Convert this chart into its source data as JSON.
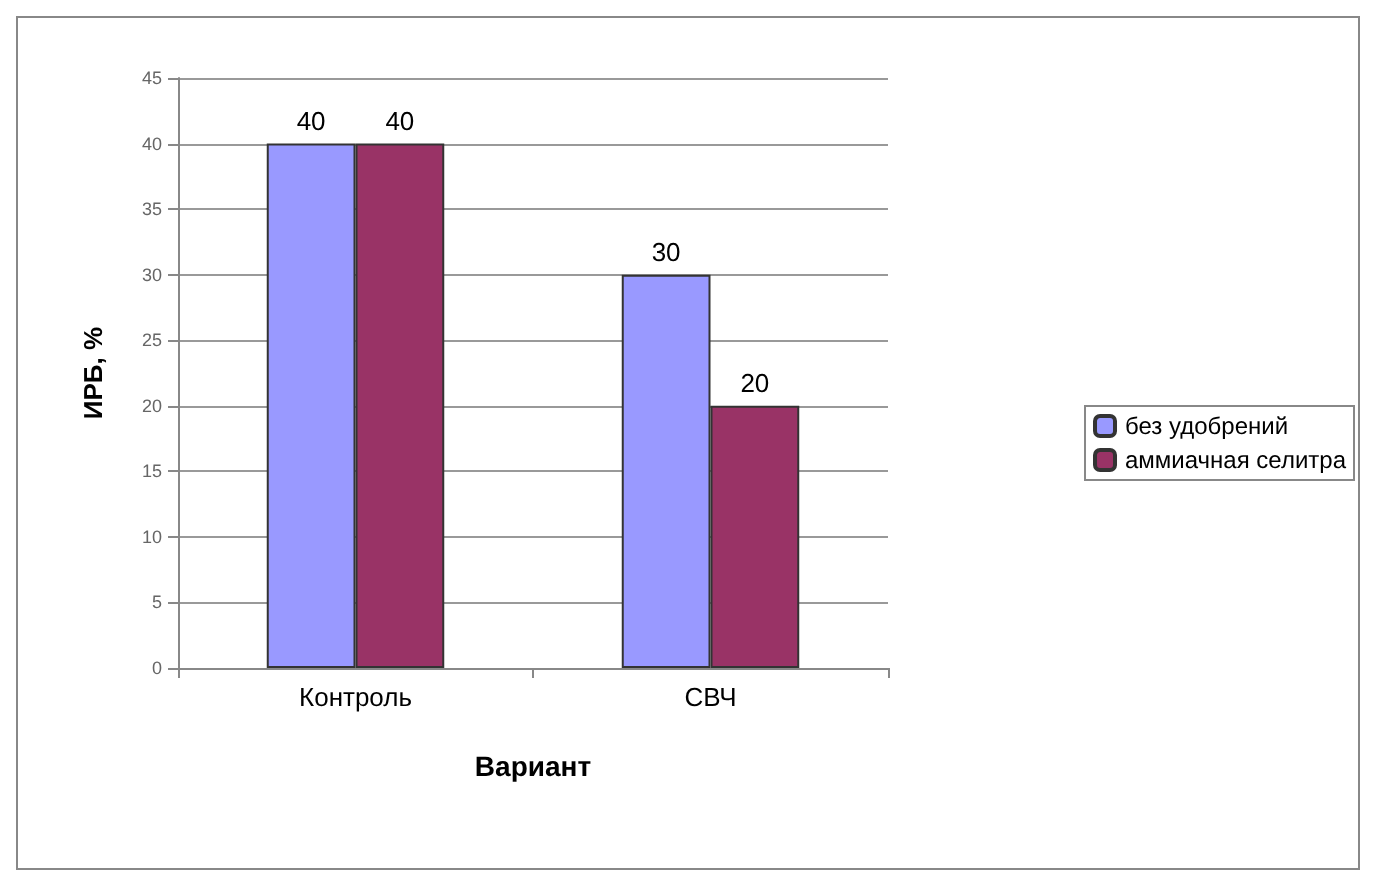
{
  "chart_data": {
    "type": "bar",
    "xlabel": "Вариант",
    "ylabel": "ИРБ, %",
    "categories": [
      "Контроль",
      "СВЧ"
    ],
    "series": [
      {
        "name": "без удобрений",
        "color": "#9999ff",
        "values": [
          40,
          30
        ]
      },
      {
        "name": "аммиачная селитра",
        "color": "#993366",
        "values": [
          40,
          20
        ]
      }
    ],
    "ylim": [
      0,
      45
    ],
    "yticks": [
      0,
      5,
      10,
      15,
      20,
      25,
      30,
      35,
      40,
      45
    ],
    "grid": "y",
    "legend": "right",
    "data_labels": true
  }
}
